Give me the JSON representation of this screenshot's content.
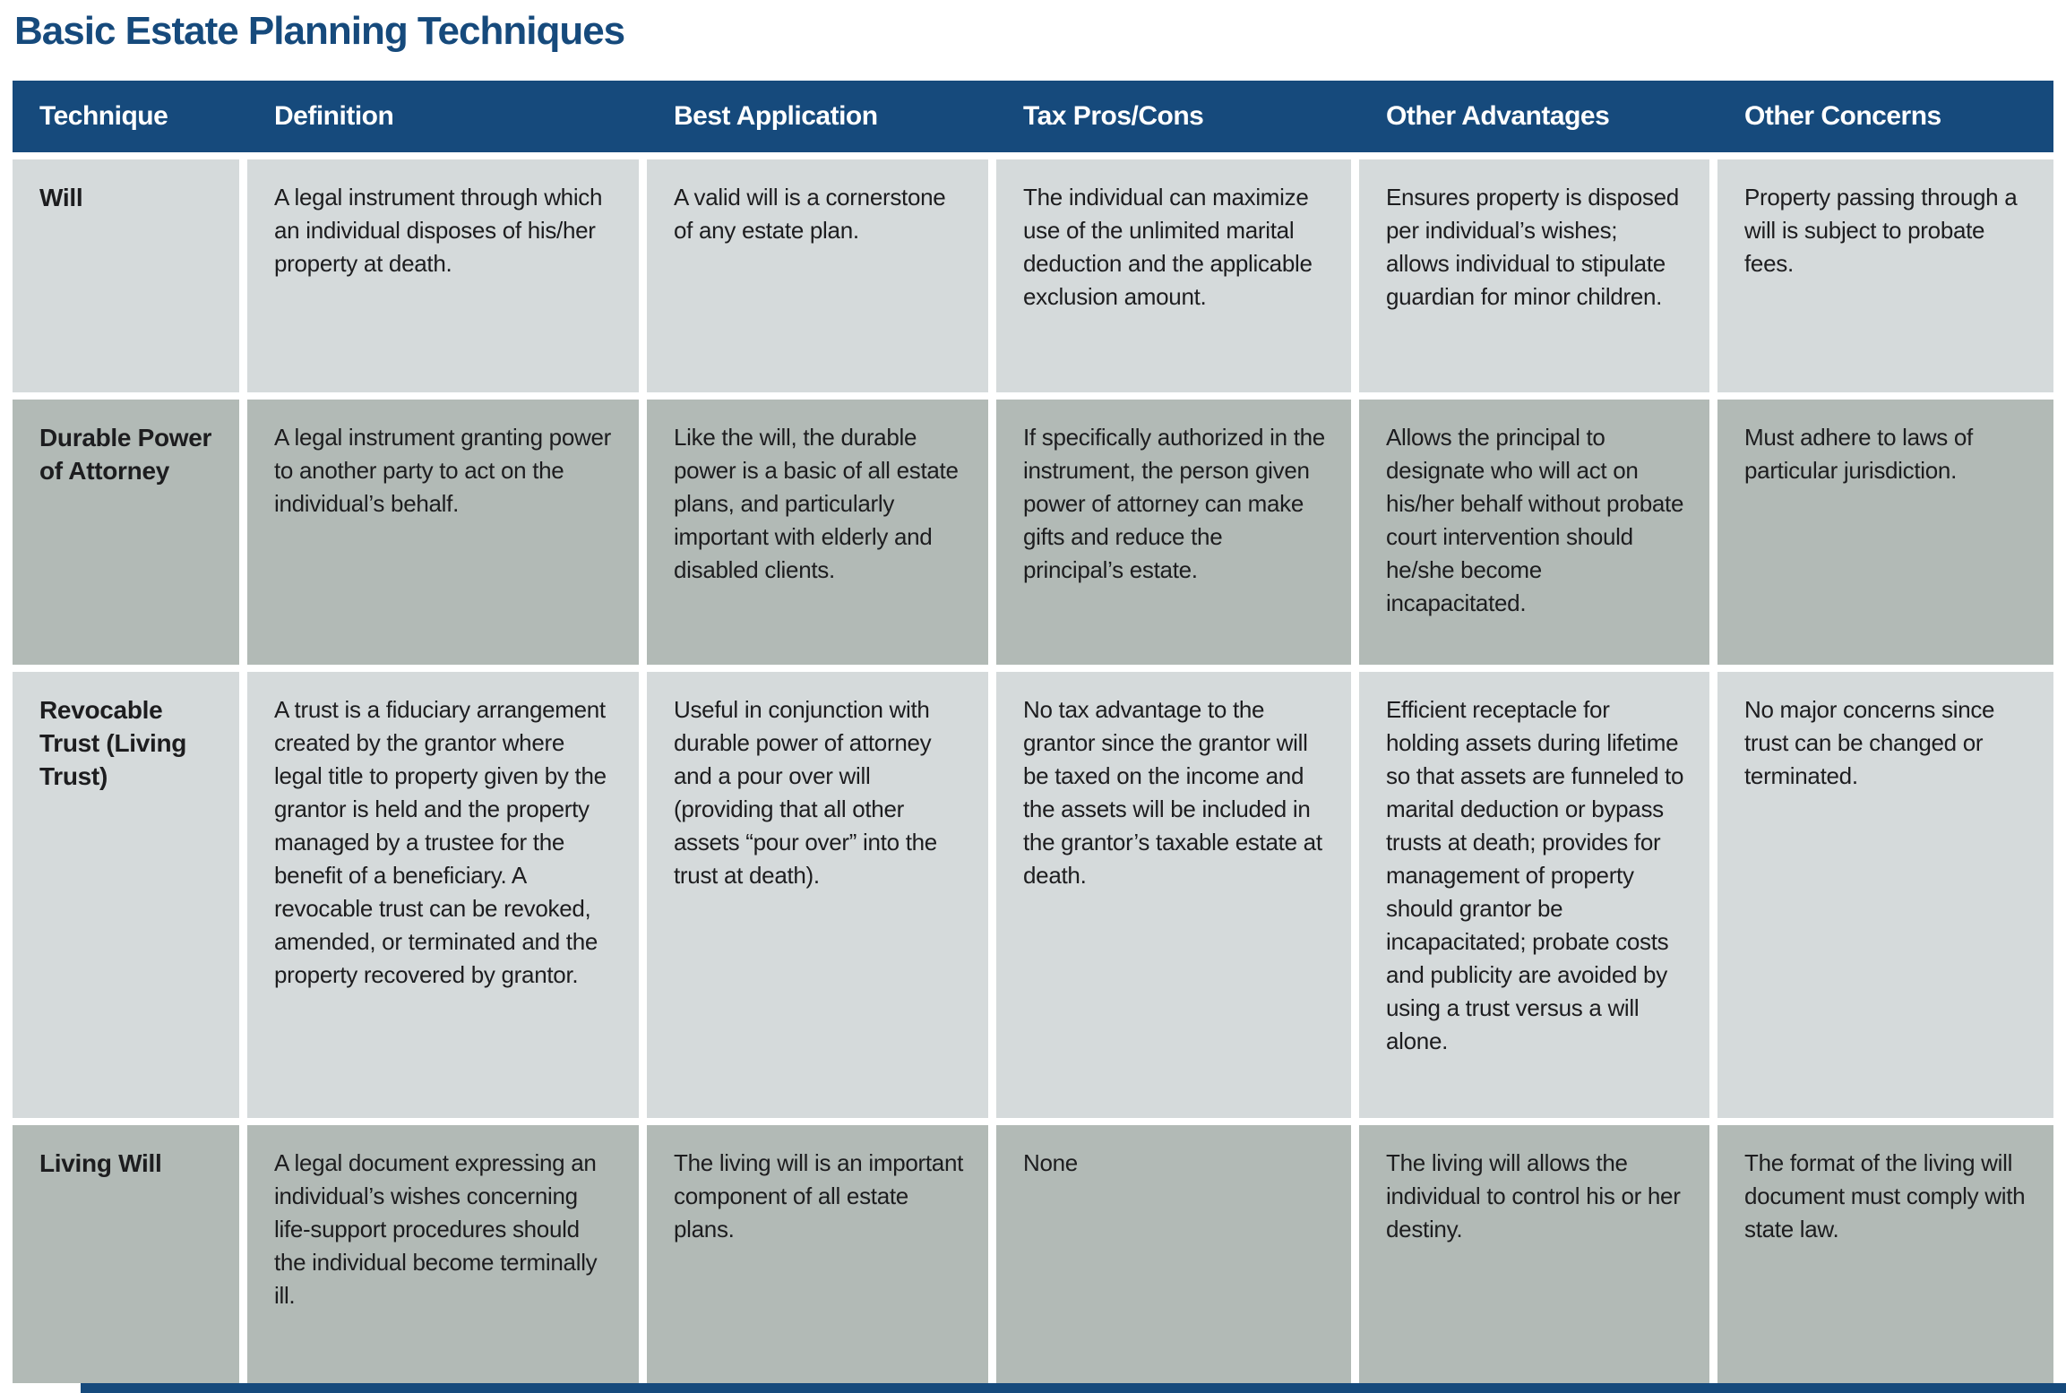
{
  "title": "Basic Estate Planning Techniques",
  "colors": {
    "navy": "#164a7c",
    "row_light": "#d5dadb",
    "row_dark": "#b2bab6",
    "text": "#1d1d1f"
  },
  "table": {
    "columns": [
      "Technique",
      "Definition",
      "Best Application",
      "Tax Pros/Cons",
      "Other Advantages",
      "Other Concerns"
    ],
    "rows": [
      {
        "technique": "Will",
        "definition": "A legal instrument through which an individual disposes of his/her property at death.",
        "best_application": "A valid will is a cornerstone of any estate plan.",
        "tax_pros_cons": "The individual can maximize use of the unlimited marital deduction and the applicable exclusion amount.",
        "other_advantages": "Ensures property is disposed per individual’s wishes; allows individual to stipulate guardian for minor children.",
        "other_concerns": "Property passing through a will is subject to probate fees."
      },
      {
        "technique": "Durable Power of Attorney",
        "definition": "A legal instrument granting power to another party to act on the individual’s behalf.",
        "best_application": "Like the will, the durable power is a basic of all estate plans, and particularly important with elderly and disabled clients.",
        "tax_pros_cons": "If specifically authorized in the instrument, the person given power of attorney can make gifts and reduce the principal’s estate.",
        "other_advantages": "Allows the principal to designate who will act on his/her behalf without probate court intervention should he/she become incapacitated.",
        "other_concerns": "Must adhere to laws of particular jurisdiction."
      },
      {
        "technique": "Revocable Trust (Living Trust)",
        "definition": "A trust is a fiduciary arrangement created by the grantor where legal title to property given by the grantor is held and the property managed by a trustee for the benefit of a beneficiary. A revocable trust can be revoked, amended, or terminated and the property recovered by grantor.",
        "best_application": "Useful in conjunction with durable power of attorney and a pour over will (providing that all other assets “pour over” into the trust at death).",
        "tax_pros_cons": "No tax advantage to the grantor since the grantor will be taxed on the income and the assets will be included in the grantor’s taxable estate at death.",
        "other_advantages": "Efficient receptacle for holding assets during lifetime so that assets are funneled to marital deduction or bypass trusts at death; provides for management of property should grantor be incapacitated; probate costs and publicity are avoided by using a trust versus a will alone.",
        "other_concerns": "No major concerns since trust can be changed or terminated."
      },
      {
        "technique": "Living Will",
        "definition": "A legal document expressing an individual’s wishes concerning life-support procedures should the individual become terminally ill.",
        "best_application": "The living will is an important component of all estate plans.",
        "tax_pros_cons": "None",
        "other_advantages": "The living will allows the individual to control his or her destiny.",
        "other_concerns": "The format of the living will document must comply with state law."
      }
    ]
  }
}
